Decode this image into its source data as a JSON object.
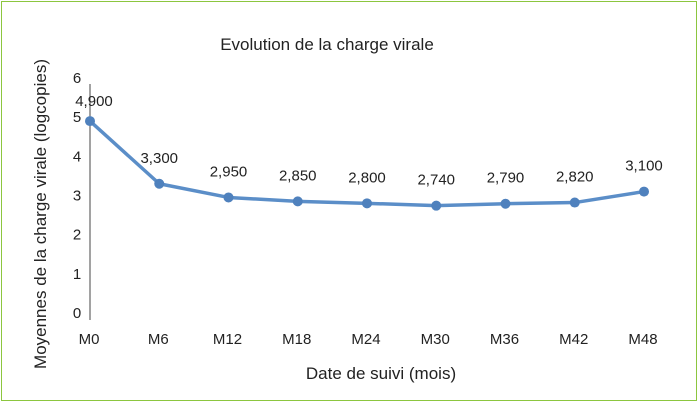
{
  "chart_data": {
    "type": "line",
    "title": "Evolution de la charge virale",
    "xlabel": "Date de suivi (mois)",
    "ylabel": "Moyennes de la charge virale (logcopies)",
    "categories": [
      "M0",
      "M6",
      "M12",
      "M18",
      "M24",
      "M30",
      "M36",
      "M42",
      "M48"
    ],
    "series": [
      {
        "values": [
          4.9,
          3.3,
          2.95,
          2.85,
          2.8,
          2.74,
          2.79,
          2.82,
          3.1
        ],
        "labels": [
          "4,900",
          "3,300",
          "2,950",
          "2,850",
          "2,800",
          "2,740",
          "2,790",
          "2,820",
          "3,100"
        ]
      }
    ],
    "yticks": [
      "0",
      "1",
      "2",
      "3",
      "4",
      "5",
      "6"
    ],
    "ylim": [
      0,
      6
    ],
    "grid": false,
    "colors": {
      "line": "#5b8ec8",
      "marker": "#4f81bd",
      "axis": "#444444",
      "frame": "#8cc63f"
    }
  }
}
